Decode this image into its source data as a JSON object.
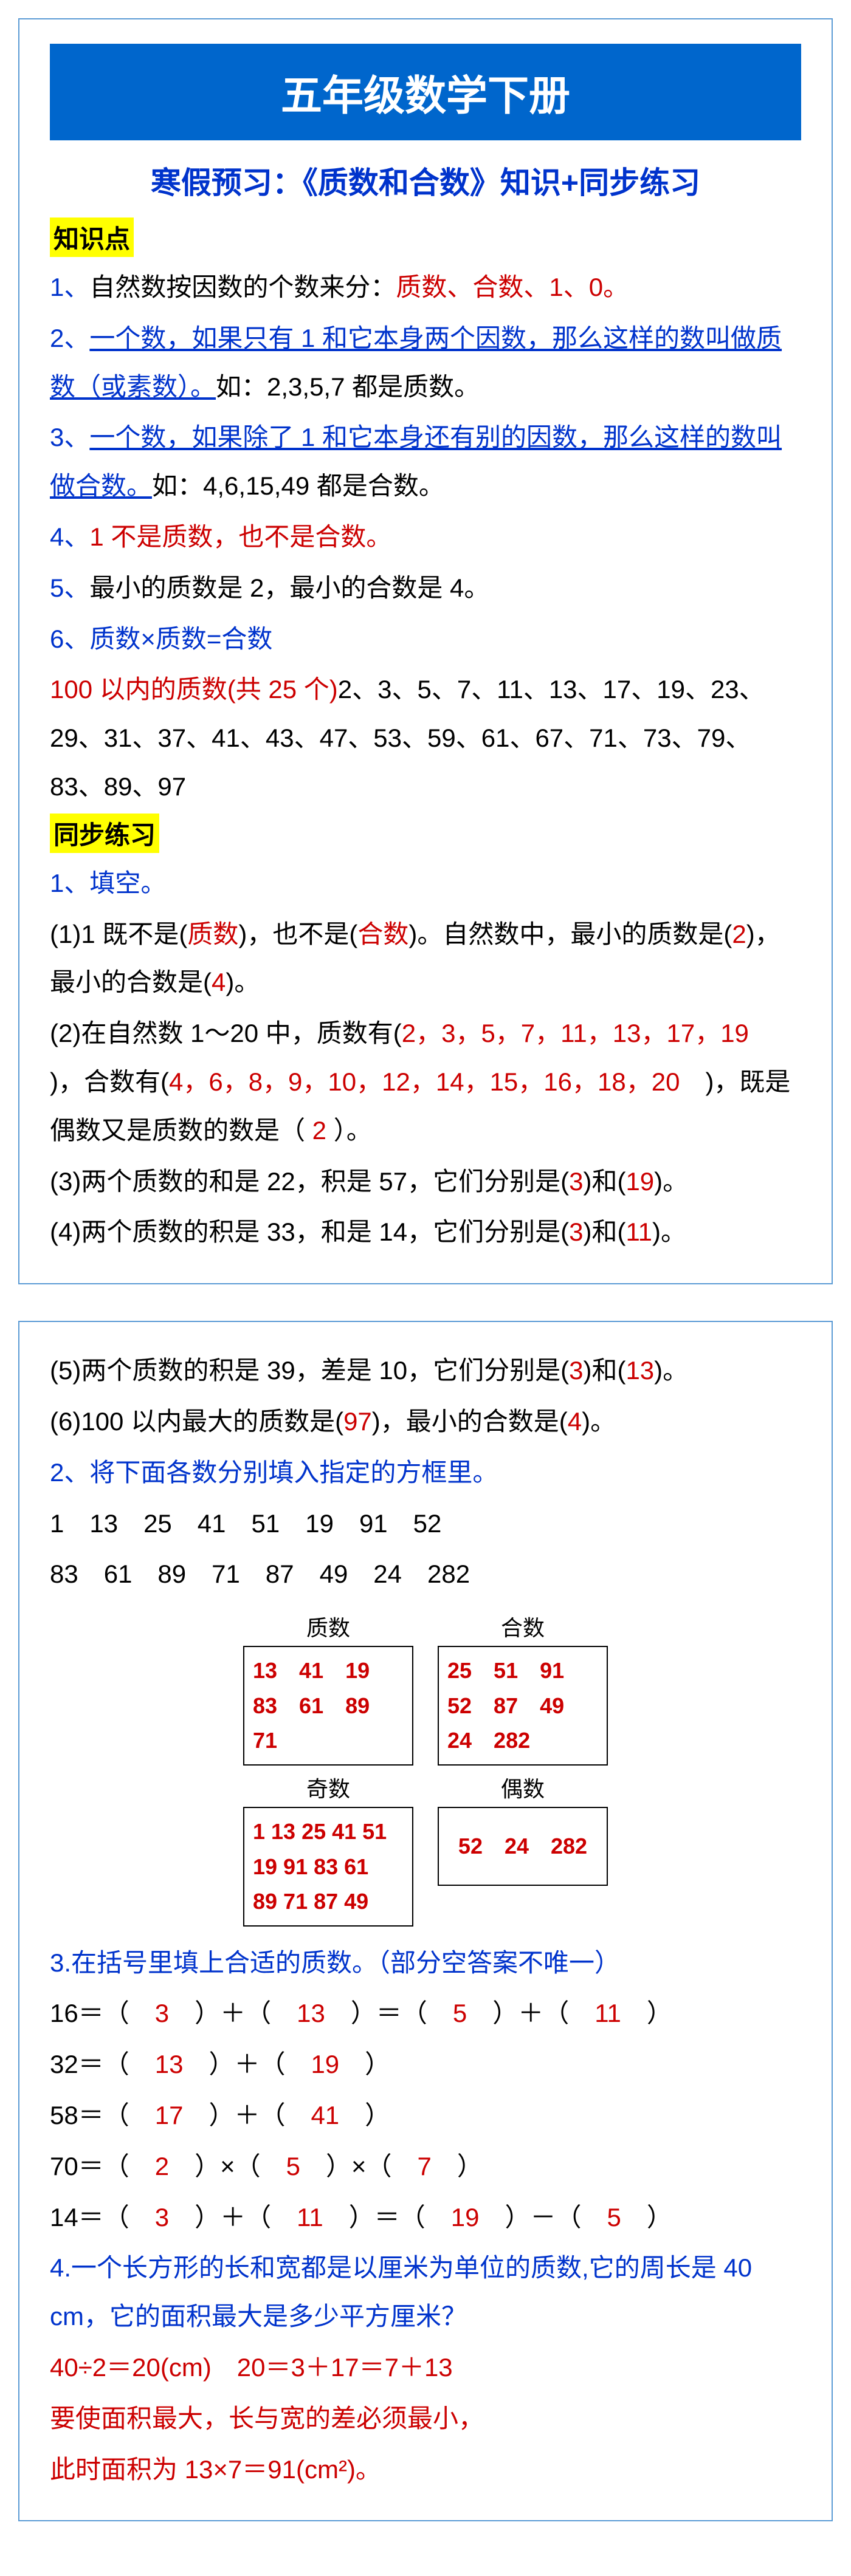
{
  "colors": {
    "banner_bg": "#0066cc",
    "banner_fg": "#ffffff",
    "subtitle": "#0033cc",
    "highlight_bg": "#ffff00",
    "red": "#cc0000",
    "blue": "#0033cc",
    "black": "#000000",
    "border": "#5b9bd5"
  },
  "typography": {
    "title_size": 68,
    "subtitle_size": 50,
    "body_size": 42,
    "box_size": 36
  },
  "banner": "五年级数学下册",
  "subtitle": "寒假预习：《质数和合数》知识+同步练习",
  "s1_tag": "知识点",
  "k1_n": "1、",
  "k1_a": "自然数按因数的个数来分：",
  "k1_b": "质数、合数、1、0。",
  "k2_n": "2、",
  "k2_a": "一个数，如果只有 1 和它本身两个因数，那么这样的数叫做质数（或素数）。",
  "k2_b": "如：2,3,5,7 都是质数。",
  "k3_n": "3、",
  "k3_a": "一个数，如果除了 1 和它本身还有别的因数，那么这样的数叫做合数。",
  "k3_b": "如：4,6,15,49 都是合数。",
  "k4_n": "4、",
  "k4_a": "1 不是质数，也不是合数。",
  "k5_n": "5、",
  "k5_a": "最小的质数是 2，最小的合数是 4。",
  "k6_n": "6、",
  "k6_a": "质数×质数=合数",
  "p100a": "100 以内的质数(共 25 个)",
  "p100b": "2、3、5、7、11、13、17、19、23、29、31、37、41、43、47、53、59、61、67、71、73、79、83、89、97",
  "s2_tag": "同步练习",
  "ex1h": "1、填空。",
  "q1a": "(1)1 既不是(",
  "q1b": "质数",
  "q1c": ")，也不是(",
  "q1d": "合数",
  "q1e": ")。自然数中，最小的质数是(",
  "q1f": "2",
  "q1g": ")，最小的合数是(",
  "q1h": "4",
  "q1i": ")。",
  "q2a": "(2)在自然数 1～20 中，质数有(",
  "q2b": "2，3，5，7，11，13，17，19　",
  "q2c": ")，合数有(",
  "q2d": "4，6，8，9，10，12，14，15，16，18，20　",
  "q2e": ")，既是偶数又是质数的数是（",
  "q2f": " 2 ",
  "q2g": "）。",
  "q3a": "(3)两个质数的和是 22，积是 57，它们分别是(",
  "q3b": "3",
  "q3c": ")和(",
  "q3d": "19",
  "q3e": ")。",
  "q4a": "(4)两个质数的积是 33，和是 14，它们分别是(",
  "q4b": "3",
  "q4c": ")和(",
  "q4d": "11",
  "q4e": ")。",
  "q5a": "(5)两个质数的积是 39，差是 10，它们分别是(",
  "q5b": "3",
  "q5c": ")和(",
  "q5d": "13",
  "q5e": ")。",
  "q6a": "(6)100 以内最大的质数是(",
  "q6b": "97",
  "q6c": ")，最小的合数是(",
  "q6d": "4",
  "q6e": ")。",
  "ex2h": "2、将下面各数分别填入指定的方框里。",
  "numrow1": "1　13　25　41　51　19　91　52",
  "numrow2": "83　61　89　71　87　49　24　282",
  "boxes": {
    "prime_label": "质数",
    "comp_label": "合数",
    "odd_label": "奇数",
    "even_label": "偶数",
    "prime": "13　41　19\n83　61　89\n71",
    "comp": "25　51　91\n52　87　49\n24　282",
    "odd": "1  13  25  41  51\n19  91  83  61\n89  71  87  49",
    "even": "52　24　282"
  },
  "ex3h": "3.在括号里填上合适的质数。（部分空答案不唯一）",
  "e16a": "16＝（　",
  "e16b": "3",
  "e16c": "　）＋（　",
  "e16d": "13",
  "e16e": "　）＝（　",
  "e16f": "5",
  "e16g": "　）＋（　",
  "e16h": "11",
  "e16i": "　）",
  "e32a": "32＝（　",
  "e32b": "13",
  "e32c": "　）＋（　",
  "e32d": "19",
  "e32e": "　）",
  "e58a": "58＝（　",
  "e58b": "17",
  "e58c": "　）＋（　",
  "e58d": "41",
  "e58e": "　）",
  "e70a": "70＝（　",
  "e70b": "2",
  "e70c": "　）×（　",
  "e70d": "5",
  "e70e": "　）×（　",
  "e70f": "7",
  "e70g": "　）",
  "e14a": "14＝（　",
  "e14b": "3",
  "e14c": "　）＋（　",
  "e14d": "11",
  "e14e": "　）＝（　",
  "e14f": "19",
  "e14g": "　）－（　",
  "e14h": "5",
  "e14i": "　）",
  "ex4h": "4.一个长方形的长和宽都是以厘米为单位的质数,它的周长是 40 cm，它的面积最大是多少平方厘米？",
  "sol1": "40÷2＝20(cm)　20＝3＋17＝7＋13",
  "sol2": "要使面积最大，长与宽的差必须最小，",
  "sol3": "此时面积为 13×7＝91(cm²)。"
}
